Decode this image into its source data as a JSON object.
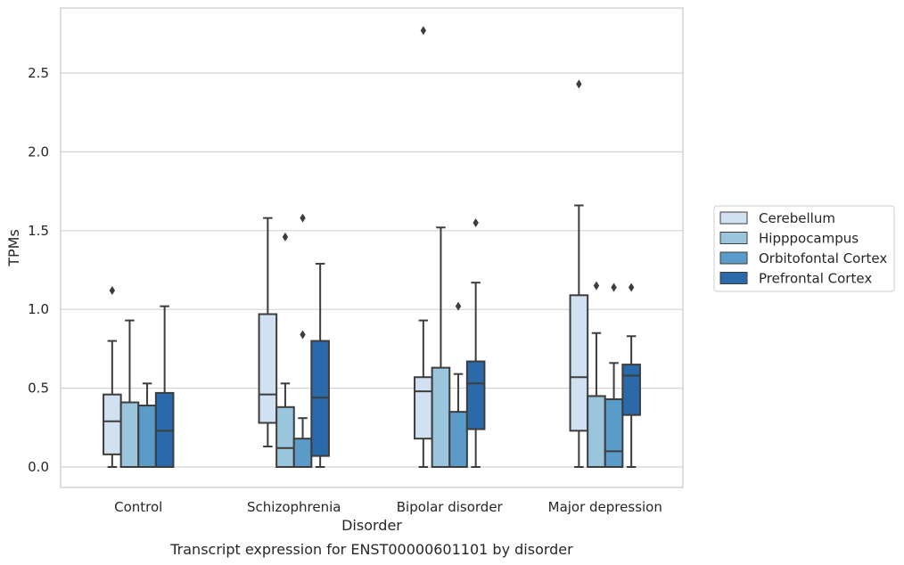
{
  "chart_data": {
    "type": "box",
    "xlabel": "Disorder",
    "ylabel": "TPMs",
    "caption": "Transcript expression for ENST00000601101 by disorder",
    "categories": [
      "Control",
      "Schizophrenia",
      "Bipolar disorder",
      "Major depression"
    ],
    "ylim": [
      -0.13,
      2.93
    ],
    "yticks": [
      "0.0",
      "0.5",
      "1.0",
      "1.5",
      "2.0",
      "2.5"
    ],
    "grid": "horizontal",
    "legend_position": "right",
    "series": [
      {
        "name": "Cerebellum",
        "color": "#d1e1f1",
        "boxes": [
          {
            "min": 0.0,
            "q1": 0.08,
            "median": 0.29,
            "q3": 0.46,
            "max": 0.8,
            "outliers": [
              1.12
            ]
          },
          {
            "min": 0.13,
            "q1": 0.28,
            "median": 0.46,
            "q3": 0.97,
            "max": 1.58,
            "outliers": []
          },
          {
            "min": 0.0,
            "q1": 0.18,
            "median": 0.48,
            "q3": 0.57,
            "max": 0.93,
            "outliers": [
              2.77
            ]
          },
          {
            "min": 0.0,
            "q1": 0.23,
            "median": 0.57,
            "q3": 1.09,
            "max": 1.66,
            "outliers": [
              2.43
            ]
          }
        ]
      },
      {
        "name": "Hipppocampus",
        "color": "#9bc4dd",
        "boxes": [
          {
            "min": 0.0,
            "q1": 0.0,
            "median": 0.0,
            "q3": 0.41,
            "max": 0.93,
            "outliers": []
          },
          {
            "min": 0.0,
            "q1": 0.0,
            "median": 0.12,
            "q3": 0.38,
            "max": 0.53,
            "outliers": [
              1.46
            ]
          },
          {
            "min": 0.0,
            "q1": 0.0,
            "median": 0.0,
            "q3": 0.63,
            "max": 1.52,
            "outliers": []
          },
          {
            "min": 0.0,
            "q1": 0.0,
            "median": 0.0,
            "q3": 0.45,
            "max": 0.85,
            "outliers": [
              1.15
            ]
          }
        ]
      },
      {
        "name": "Orbitofontal Cortex",
        "color": "#5a9bc8",
        "boxes": [
          {
            "min": 0.0,
            "q1": 0.0,
            "median": 0.0,
            "q3": 0.39,
            "max": 0.53,
            "outliers": []
          },
          {
            "min": 0.0,
            "q1": 0.0,
            "median": 0.0,
            "q3": 0.18,
            "max": 0.31,
            "outliers": [
              0.84,
              1.58
            ]
          },
          {
            "min": 0.0,
            "q1": 0.0,
            "median": 0.0,
            "q3": 0.35,
            "max": 0.59,
            "outliers": [
              1.02
            ]
          },
          {
            "min": 0.0,
            "q1": 0.0,
            "median": 0.1,
            "q3": 0.43,
            "max": 0.66,
            "outliers": [
              1.14
            ]
          }
        ]
      },
      {
        "name": "Prefrontal Cortex",
        "color": "#2a69aa",
        "boxes": [
          {
            "min": 0.0,
            "q1": 0.0,
            "median": 0.23,
            "q3": 0.47,
            "max": 1.02,
            "outliers": []
          },
          {
            "min": 0.0,
            "q1": 0.07,
            "median": 0.44,
            "q3": 0.8,
            "max": 1.29,
            "outliers": []
          },
          {
            "min": 0.0,
            "q1": 0.24,
            "median": 0.53,
            "q3": 0.67,
            "max": 1.17,
            "outliers": [
              1.55
            ]
          },
          {
            "min": 0.0,
            "q1": 0.33,
            "median": 0.58,
            "q3": 0.65,
            "max": 0.83,
            "outliers": [
              1.14
            ]
          }
        ]
      }
    ]
  }
}
